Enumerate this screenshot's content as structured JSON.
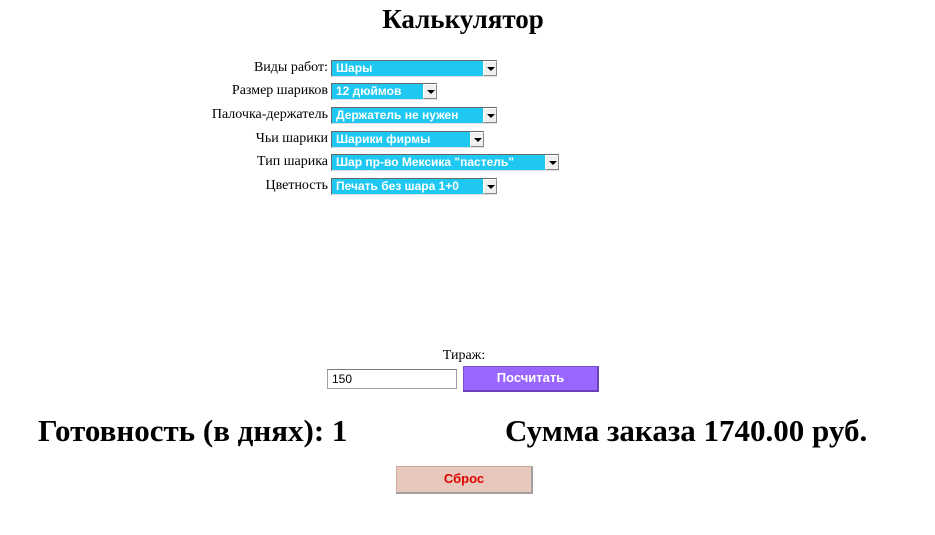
{
  "page": {
    "title": "Калькулятор"
  },
  "form": {
    "rows": [
      {
        "label": "Виды работ:",
        "value": "Шары"
      },
      {
        "label": "Размер шариков",
        "value": "12 дюймов"
      },
      {
        "label": "Палочка-держатель",
        "value": "Держатель не нужен"
      },
      {
        "label": "Чьи шарики",
        "value": "Шарики фирмы"
      },
      {
        "label": "Тип шарика",
        "value": "Шар пр-во Мексика \"пастель\""
      },
      {
        "label": "Цветность",
        "value": "Печать без шара 1+0"
      }
    ]
  },
  "quantity": {
    "label": "Тираж:",
    "value": "150",
    "calculate_label": "Посчитать"
  },
  "results": {
    "readiness": "Готовность (в днях): 1",
    "total": "Сумма заказа 1740.00 руб."
  },
  "reset_label": "Сброс",
  "colors": {
    "select_bg": "#1ec8f0",
    "calc_button": "#9966ff",
    "reset_button": "#e8c8bc",
    "reset_text": "#e00000"
  },
  "icons": {
    "dropdown": "chevron-down-icon"
  }
}
